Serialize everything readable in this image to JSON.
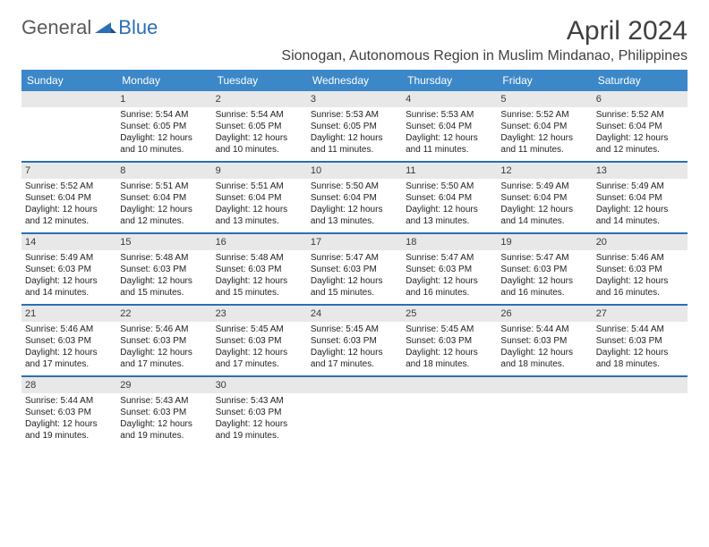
{
  "logo": {
    "text1": "General",
    "text2": "Blue"
  },
  "title": "April 2024",
  "location": "Sionogan, Autonomous Region in Muslim Mindanao, Philippines",
  "colors": {
    "header_bg": "#3b87c8",
    "header_text": "#ffffff",
    "daynum_bg": "#e8e8e8",
    "week_divider": "#2a6fb5",
    "text": "#222222",
    "logo_gray": "#5a5a5a",
    "logo_blue": "#2a6fb5"
  },
  "day_names": [
    "Sunday",
    "Monday",
    "Tuesday",
    "Wednesday",
    "Thursday",
    "Friday",
    "Saturday"
  ],
  "weeks": [
    [
      null,
      {
        "n": "1",
        "sr": "Sunrise: 5:54 AM",
        "ss": "Sunset: 6:05 PM",
        "dl": "Daylight: 12 hours and 10 minutes."
      },
      {
        "n": "2",
        "sr": "Sunrise: 5:54 AM",
        "ss": "Sunset: 6:05 PM",
        "dl": "Daylight: 12 hours and 10 minutes."
      },
      {
        "n": "3",
        "sr": "Sunrise: 5:53 AM",
        "ss": "Sunset: 6:05 PM",
        "dl": "Daylight: 12 hours and 11 minutes."
      },
      {
        "n": "4",
        "sr": "Sunrise: 5:53 AM",
        "ss": "Sunset: 6:04 PM",
        "dl": "Daylight: 12 hours and 11 minutes."
      },
      {
        "n": "5",
        "sr": "Sunrise: 5:52 AM",
        "ss": "Sunset: 6:04 PM",
        "dl": "Daylight: 12 hours and 11 minutes."
      },
      {
        "n": "6",
        "sr": "Sunrise: 5:52 AM",
        "ss": "Sunset: 6:04 PM",
        "dl": "Daylight: 12 hours and 12 minutes."
      }
    ],
    [
      {
        "n": "7",
        "sr": "Sunrise: 5:52 AM",
        "ss": "Sunset: 6:04 PM",
        "dl": "Daylight: 12 hours and 12 minutes."
      },
      {
        "n": "8",
        "sr": "Sunrise: 5:51 AM",
        "ss": "Sunset: 6:04 PM",
        "dl": "Daylight: 12 hours and 12 minutes."
      },
      {
        "n": "9",
        "sr": "Sunrise: 5:51 AM",
        "ss": "Sunset: 6:04 PM",
        "dl": "Daylight: 12 hours and 13 minutes."
      },
      {
        "n": "10",
        "sr": "Sunrise: 5:50 AM",
        "ss": "Sunset: 6:04 PM",
        "dl": "Daylight: 12 hours and 13 minutes."
      },
      {
        "n": "11",
        "sr": "Sunrise: 5:50 AM",
        "ss": "Sunset: 6:04 PM",
        "dl": "Daylight: 12 hours and 13 minutes."
      },
      {
        "n": "12",
        "sr": "Sunrise: 5:49 AM",
        "ss": "Sunset: 6:04 PM",
        "dl": "Daylight: 12 hours and 14 minutes."
      },
      {
        "n": "13",
        "sr": "Sunrise: 5:49 AM",
        "ss": "Sunset: 6:04 PM",
        "dl": "Daylight: 12 hours and 14 minutes."
      }
    ],
    [
      {
        "n": "14",
        "sr": "Sunrise: 5:49 AM",
        "ss": "Sunset: 6:03 PM",
        "dl": "Daylight: 12 hours and 14 minutes."
      },
      {
        "n": "15",
        "sr": "Sunrise: 5:48 AM",
        "ss": "Sunset: 6:03 PM",
        "dl": "Daylight: 12 hours and 15 minutes."
      },
      {
        "n": "16",
        "sr": "Sunrise: 5:48 AM",
        "ss": "Sunset: 6:03 PM",
        "dl": "Daylight: 12 hours and 15 minutes."
      },
      {
        "n": "17",
        "sr": "Sunrise: 5:47 AM",
        "ss": "Sunset: 6:03 PM",
        "dl": "Daylight: 12 hours and 15 minutes."
      },
      {
        "n": "18",
        "sr": "Sunrise: 5:47 AM",
        "ss": "Sunset: 6:03 PM",
        "dl": "Daylight: 12 hours and 16 minutes."
      },
      {
        "n": "19",
        "sr": "Sunrise: 5:47 AM",
        "ss": "Sunset: 6:03 PM",
        "dl": "Daylight: 12 hours and 16 minutes."
      },
      {
        "n": "20",
        "sr": "Sunrise: 5:46 AM",
        "ss": "Sunset: 6:03 PM",
        "dl": "Daylight: 12 hours and 16 minutes."
      }
    ],
    [
      {
        "n": "21",
        "sr": "Sunrise: 5:46 AM",
        "ss": "Sunset: 6:03 PM",
        "dl": "Daylight: 12 hours and 17 minutes."
      },
      {
        "n": "22",
        "sr": "Sunrise: 5:46 AM",
        "ss": "Sunset: 6:03 PM",
        "dl": "Daylight: 12 hours and 17 minutes."
      },
      {
        "n": "23",
        "sr": "Sunrise: 5:45 AM",
        "ss": "Sunset: 6:03 PM",
        "dl": "Daylight: 12 hours and 17 minutes."
      },
      {
        "n": "24",
        "sr": "Sunrise: 5:45 AM",
        "ss": "Sunset: 6:03 PM",
        "dl": "Daylight: 12 hours and 17 minutes."
      },
      {
        "n": "25",
        "sr": "Sunrise: 5:45 AM",
        "ss": "Sunset: 6:03 PM",
        "dl": "Daylight: 12 hours and 18 minutes."
      },
      {
        "n": "26",
        "sr": "Sunrise: 5:44 AM",
        "ss": "Sunset: 6:03 PM",
        "dl": "Daylight: 12 hours and 18 minutes."
      },
      {
        "n": "27",
        "sr": "Sunrise: 5:44 AM",
        "ss": "Sunset: 6:03 PM",
        "dl": "Daylight: 12 hours and 18 minutes."
      }
    ],
    [
      {
        "n": "28",
        "sr": "Sunrise: 5:44 AM",
        "ss": "Sunset: 6:03 PM",
        "dl": "Daylight: 12 hours and 19 minutes."
      },
      {
        "n": "29",
        "sr": "Sunrise: 5:43 AM",
        "ss": "Sunset: 6:03 PM",
        "dl": "Daylight: 12 hours and 19 minutes."
      },
      {
        "n": "30",
        "sr": "Sunrise: 5:43 AM",
        "ss": "Sunset: 6:03 PM",
        "dl": "Daylight: 12 hours and 19 minutes."
      },
      null,
      null,
      null,
      null
    ]
  ]
}
